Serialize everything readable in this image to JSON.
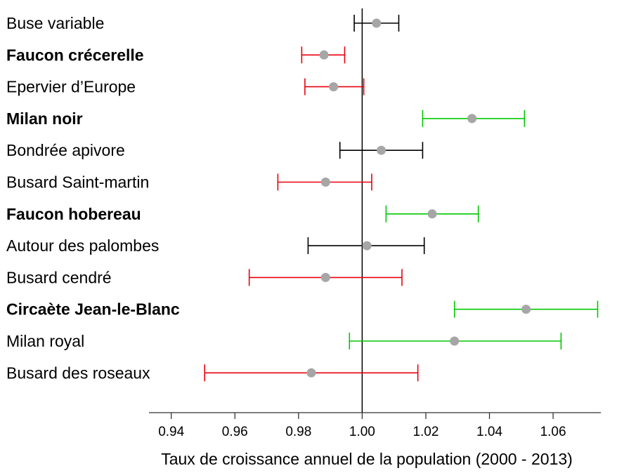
{
  "chart_data": {
    "type": "errorbar",
    "xlabel": "Taux de croissance annuel de la population (2000 - 2013)",
    "xlim": [
      0.933,
      1.075
    ],
    "reference_line": 1.0,
    "xticks": [
      0.94,
      0.96,
      0.98,
      1.0,
      1.02,
      1.04,
      1.06
    ],
    "xtick_labels": [
      "0.94",
      "0.96",
      "0.98",
      "1.00",
      "1.02",
      "1.04",
      "1.06"
    ],
    "colors": {
      "decline": "#e8000b",
      "stable": "#000000",
      "increase": "#00c800",
      "point": "#a6a6a6",
      "axis": "#333333"
    },
    "species": [
      {
        "name": "Buse variable",
        "bold": false,
        "mean": 1.0045,
        "low": 0.9975,
        "high": 1.0115,
        "status": "stable"
      },
      {
        "name": "Faucon crécerelle",
        "bold": true,
        "mean": 0.988,
        "low": 0.981,
        "high": 0.9945,
        "status": "decline"
      },
      {
        "name": "Epervier d’Europe",
        "bold": false,
        "mean": 0.991,
        "low": 0.982,
        "high": 1.0005,
        "status": "decline"
      },
      {
        "name": "Milan noir",
        "bold": true,
        "mean": 1.0345,
        "low": 1.019,
        "high": 1.051,
        "status": "increase"
      },
      {
        "name": "Bondrée apivore",
        "bold": false,
        "mean": 1.006,
        "low": 0.993,
        "high": 1.019,
        "status": "stable"
      },
      {
        "name": "Busard Saint-martin",
        "bold": false,
        "mean": 0.9885,
        "low": 0.9735,
        "high": 1.003,
        "status": "decline"
      },
      {
        "name": "Faucon hobereau",
        "bold": true,
        "mean": 1.022,
        "low": 1.0075,
        "high": 1.0365,
        "status": "increase"
      },
      {
        "name": "Autour des palombes",
        "bold": false,
        "mean": 1.0015,
        "low": 0.983,
        "high": 1.0195,
        "status": "stable"
      },
      {
        "name": "Busard cendré",
        "bold": false,
        "mean": 0.9885,
        "low": 0.9645,
        "high": 1.0125,
        "status": "decline"
      },
      {
        "name": "Circaète Jean-le-Blanc",
        "bold": true,
        "mean": 1.0515,
        "low": 1.029,
        "high": 1.074,
        "status": "increase"
      },
      {
        "name": "Milan royal",
        "bold": false,
        "mean": 1.029,
        "low": 0.996,
        "high": 1.0625,
        "status": "increase"
      },
      {
        "name": "Busard des roseaux",
        "bold": false,
        "mean": 0.984,
        "low": 0.9505,
        "high": 1.0175,
        "status": "decline"
      }
    ]
  }
}
